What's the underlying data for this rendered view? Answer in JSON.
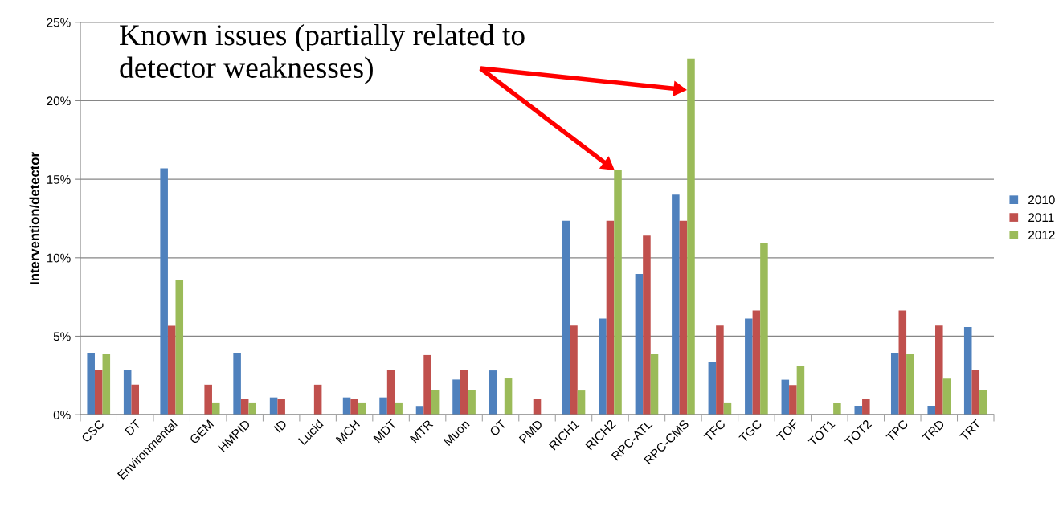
{
  "chart_data": {
    "type": "bar",
    "ylabel": "Intervention/detector",
    "categories": [
      "CSC",
      "DT",
      "Environmental",
      "GEM",
      "HMPID",
      "ID",
      "Lucid",
      "MCH",
      "MDT",
      "MTR",
      "Muon",
      "OT",
      "PMD",
      "RICH1",
      "RICH2",
      "RPC-ATL",
      "RPC-CMS",
      "TFC",
      "TGC",
      "TOF",
      "TOT1",
      "TOT2",
      "TPC",
      "TRD",
      "TRT"
    ],
    "series": [
      {
        "name": "2010",
        "color": "#4f81bd",
        "values": [
          3.95,
          2.82,
          15.7,
          0,
          3.95,
          1.1,
          0,
          1.1,
          1.1,
          0.56,
          2.24,
          2.82,
          0,
          12.36,
          6.13,
          8.96,
          14.02,
          3.34,
          6.13,
          2.23,
          0,
          0.57,
          3.95,
          0.57,
          5.59
        ]
      },
      {
        "name": "2011",
        "color": "#c0504d",
        "values": [
          2.85,
          1.91,
          5.67,
          1.91,
          0.98,
          0.98,
          1.91,
          0.98,
          2.85,
          3.8,
          2.85,
          0,
          0.98,
          5.68,
          12.36,
          11.41,
          12.36,
          5.68,
          6.64,
          1.89,
          0,
          0.98,
          6.64,
          5.68,
          2.85
        ]
      },
      {
        "name": "2012",
        "color": "#9bbb59",
        "values": [
          3.87,
          0,
          8.56,
          0.78,
          0.78,
          0,
          0,
          0.78,
          0.78,
          1.55,
          1.55,
          2.31,
          0,
          1.54,
          15.59,
          3.89,
          22.7,
          0.78,
          10.92,
          3.13,
          0.78,
          0,
          3.89,
          2.3,
          1.54
        ]
      }
    ],
    "ylim": [
      0,
      25
    ],
    "yticks": [
      {
        "value": 0,
        "label": "0%"
      },
      {
        "value": 5,
        "label": "5%"
      },
      {
        "value": 10,
        "label": "10%"
      },
      {
        "value": 15,
        "label": "15%"
      },
      {
        "value": 20,
        "label": "20%"
      },
      {
        "value": 25,
        "label": "25%"
      }
    ],
    "grid": "y",
    "legend": "right",
    "annotations": [
      "Known issues (partially related to\ndetector weaknesses)"
    ]
  }
}
